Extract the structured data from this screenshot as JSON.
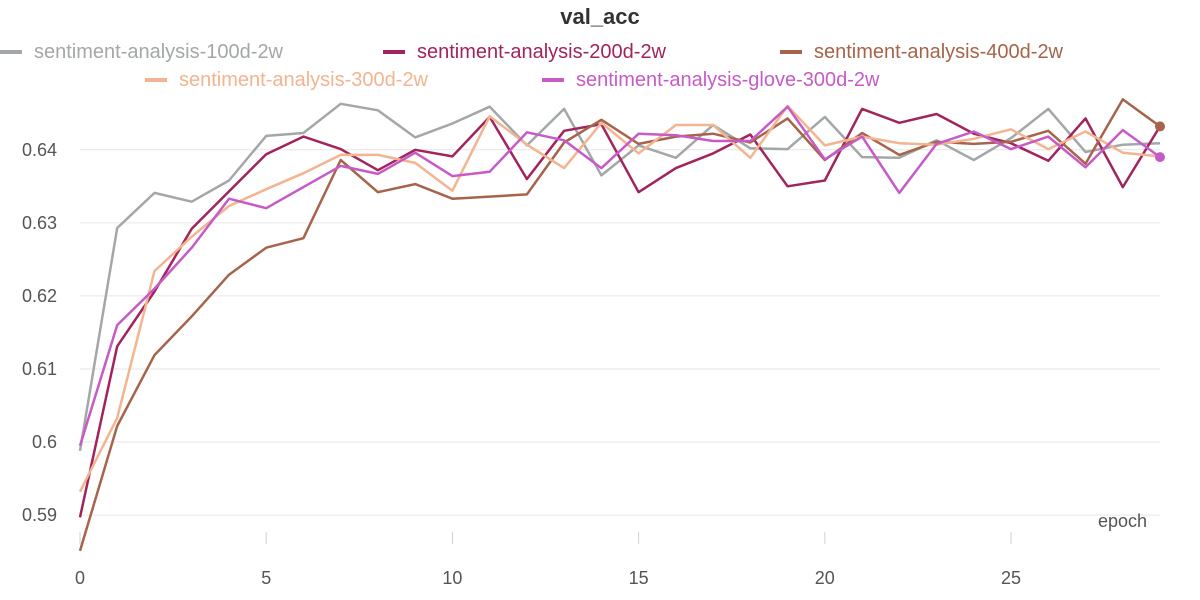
{
  "chart_data": {
    "type": "line",
    "title": "val_acc",
    "xlabel": "epoch",
    "ylabel": "",
    "xlim": [
      0,
      29
    ],
    "ylim": [
      0.587,
      0.6475
    ],
    "x_ticks": [
      0,
      5,
      10,
      15,
      20,
      25
    ],
    "y_ticks": [
      0.59,
      0.6,
      0.61,
      0.62,
      0.63,
      0.64
    ],
    "y_tick_labels": [
      "0.59",
      "0.6",
      "0.61",
      "0.62",
      "0.63",
      "0.64"
    ],
    "grid": true,
    "legend_position": "top",
    "x": [
      0,
      1,
      2,
      3,
      4,
      5,
      6,
      7,
      8,
      9,
      10,
      11,
      12,
      13,
      14,
      15,
      16,
      17,
      18,
      19,
      20,
      21,
      22,
      23,
      24,
      25,
      26,
      27,
      28,
      29
    ],
    "series": [
      {
        "name": "sentiment-analysis-100d-2w",
        "color": "#a3a7a9",
        "values": [
          0.5988,
          0.6293,
          0.6341,
          0.6329,
          0.6358,
          0.6419,
          0.6423,
          0.6463,
          0.6454,
          0.6417,
          0.6436,
          0.6459,
          0.6406,
          0.6456,
          0.6365,
          0.6406,
          0.6389,
          0.6434,
          0.6402,
          0.6401,
          0.6445,
          0.639,
          0.6389,
          0.6413,
          0.6386,
          0.6416,
          0.6456,
          0.6397,
          0.6407,
          0.6409
        ],
        "end_marker": false
      },
      {
        "name": "sentiment-analysis-200d-2w",
        "color": "#a1245c",
        "values": [
          0.5897,
          0.6131,
          0.6206,
          0.6292,
          0.6343,
          0.6394,
          0.6418,
          0.6401,
          0.6372,
          0.64,
          0.6391,
          0.6445,
          0.636,
          0.6426,
          0.6435,
          0.6342,
          0.6375,
          0.6395,
          0.6421,
          0.635,
          0.6358,
          0.6456,
          0.6437,
          0.6449,
          0.6422,
          0.6409,
          0.6385,
          0.6443,
          0.6349,
          0.6432
        ],
        "end_marker": false
      },
      {
        "name": "sentiment-analysis-400d-2w",
        "color": "#a5644b",
        "values": [
          0.5851,
          0.6022,
          0.6119,
          0.6172,
          0.6229,
          0.6266,
          0.6279,
          0.6386,
          0.6342,
          0.6353,
          0.6333,
          0.6336,
          0.6339,
          0.641,
          0.6441,
          0.6408,
          0.6418,
          0.6422,
          0.641,
          0.6443,
          0.6386,
          0.6423,
          0.6393,
          0.6411,
          0.6408,
          0.6411,
          0.6426,
          0.6381,
          0.6469,
          0.6432
        ],
        "end_marker": true
      },
      {
        "name": "sentiment-analysis-300d-2w",
        "color": "#f2b491",
        "values": [
          0.5932,
          0.6033,
          0.6234,
          0.6281,
          0.6323,
          0.6346,
          0.6368,
          0.6393,
          0.6393,
          0.6382,
          0.6344,
          0.6446,
          0.6407,
          0.6375,
          0.6437,
          0.6395,
          0.6434,
          0.6434,
          0.6389,
          0.646,
          0.6406,
          0.6418,
          0.6409,
          0.6407,
          0.6415,
          0.6428,
          0.6401,
          0.6425,
          0.6396,
          0.6391
        ],
        "end_marker": false
      },
      {
        "name": "sentiment-analysis-glove-300d-2w",
        "color": "#c65bc8",
        "values": [
          0.5995,
          0.616,
          0.621,
          0.6266,
          0.6333,
          0.632,
          0.6349,
          0.6378,
          0.6367,
          0.6396,
          0.6364,
          0.637,
          0.6424,
          0.6413,
          0.6375,
          0.6422,
          0.642,
          0.6412,
          0.6412,
          0.6459,
          0.6387,
          0.6418,
          0.6341,
          0.6408,
          0.6425,
          0.6401,
          0.6418,
          0.6376,
          0.6427,
          0.639
        ],
        "end_marker": true
      }
    ]
  }
}
